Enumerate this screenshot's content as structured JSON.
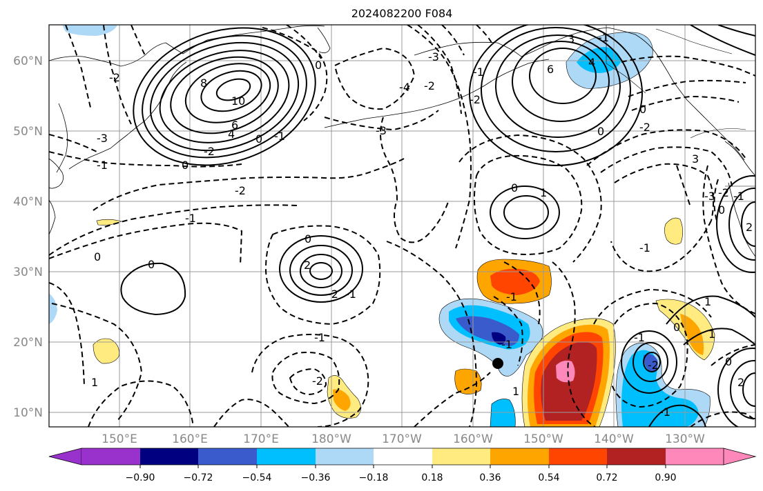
{
  "title": "2024082200 F084",
  "lat_labels": [
    "60°N",
    "50°N",
    "40°N",
    "30°N",
    "20°N",
    "10°N"
  ],
  "lon_labels": [
    "150°E",
    "160°E",
    "170°E",
    "180°W",
    "170°W",
    "160°W",
    "150°W",
    "140°W",
    "130°W"
  ],
  "colorbar": {
    "tick_labels": [
      "−0.90",
      "−0.72",
      "−0.54",
      "−0.36",
      "−0.18",
      "0.18",
      "0.36",
      "0.54",
      "0.72",
      "0.90"
    ],
    "colors": {
      "under": "#9932CC",
      "bin_neg_090_072": "#000080",
      "bin_neg_072_054": "#3A5BCC",
      "bin_neg_054_036": "#00BFFF",
      "bin_neg_036_018": "#ADD8F6",
      "bin_neg_018_018": "#FFFFFF",
      "bin_018_036": "#FFEB80",
      "bin_036_054": "#FFA500",
      "bin_054_072": "#FF4500",
      "bin_072_090": "#B22222",
      "over": "#FF88BB"
    }
  },
  "contour_labels": [
    "8",
    "10",
    "6",
    "4",
    "0",
    "-1",
    "-2",
    "-3",
    "-2",
    "-1",
    "0",
    "0",
    "-2",
    "-1",
    "-3",
    "-4",
    "-2",
    "-3",
    "-2",
    "3",
    "-1",
    "6",
    "4",
    "-1",
    "3",
    "0",
    "0",
    "-2",
    "-3",
    "0",
    "1",
    "-2",
    "-1",
    "0",
    "-1",
    "0",
    "2",
    "-2",
    "-1",
    "0",
    "-1",
    "1",
    "0",
    "-2",
    "1",
    "-1",
    "-2",
    "0",
    "-1",
    "1",
    "2",
    "0",
    "-1",
    "2",
    "1",
    "-1"
  ],
  "storm_marker": "tropical-cyclone-position-dot"
}
